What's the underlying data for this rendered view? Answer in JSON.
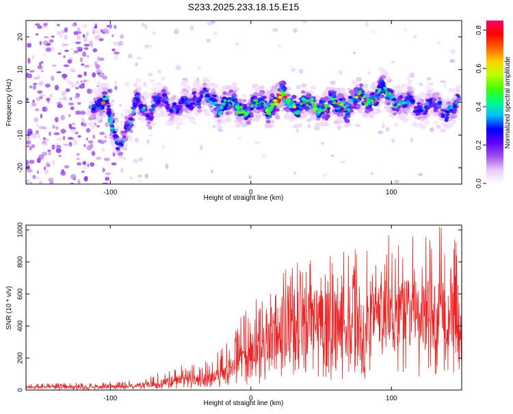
{
  "title": "S233.2025.233.18.15.E15",
  "chart_data": [
    {
      "type": "heatmap",
      "name": "spectrogram",
      "xlabel": "Height of straight line (km)",
      "ylabel": "Frequency (Hz)",
      "xlim": [
        -160,
        150
      ],
      "ylim": [
        -25,
        25
      ],
      "xticks": [
        -100,
        0,
        100
      ],
      "xtick_labels": [
        "-100",
        "0",
        "100"
      ],
      "yticks": [
        -20,
        -10,
        0,
        10,
        20
      ],
      "ytick_labels": [
        "-20",
        "-10",
        "0",
        "10",
        "20"
      ],
      "colorbar": {
        "label": "Normalized spectral amplitude",
        "range": [
          0,
          0.85
        ],
        "ticks": [
          0.0,
          0.2,
          0.4,
          0.6,
          0.8
        ],
        "tick_labels": [
          "0.0",
          "0.2",
          "0.4",
          "0.6",
          "0.8"
        ],
        "colors": [
          "#ffffff",
          "#e8c8f8",
          "#a050f0",
          "#6000ff",
          "#0000ff",
          "#00c0ff",
          "#00ff80",
          "#40ff00",
          "#c0ff00",
          "#ffd000",
          "#ff6000",
          "#ff0000",
          "#ff0060"
        ]
      },
      "ridge": [
        {
          "x": -114,
          "f": 0,
          "amp": 0.35
        },
        {
          "x": -103,
          "f": -1,
          "amp": 0.4
        },
        {
          "x": -95,
          "f": -12,
          "amp": 0.35
        },
        {
          "x": -86,
          "f": -8,
          "amp": 0.35
        },
        {
          "x": -80,
          "f": 2,
          "amp": 0.35
        },
        {
          "x": -72,
          "f": -4,
          "amp": 0.3
        },
        {
          "x": -62,
          "f": 2,
          "amp": 0.3
        },
        {
          "x": -52,
          "f": -3,
          "amp": 0.3
        },
        {
          "x": -40,
          "f": 2,
          "amp": 0.3
        },
        {
          "x": -28,
          "f": 0,
          "amp": 0.35
        },
        {
          "x": -12,
          "f": -1,
          "amp": 0.45
        },
        {
          "x": 0,
          "f": -2,
          "amp": 0.45
        },
        {
          "x": 10,
          "f": -1,
          "amp": 0.5
        },
        {
          "x": 22,
          "f": 1,
          "amp": 0.75
        },
        {
          "x": 35,
          "f": -1,
          "amp": 0.45
        },
        {
          "x": 50,
          "f": -1,
          "amp": 0.5
        },
        {
          "x": 65,
          "f": -1,
          "amp": 0.55
        },
        {
          "x": 80,
          "f": 1,
          "amp": 0.5
        },
        {
          "x": 95,
          "f": 3,
          "amp": 0.45
        },
        {
          "x": 110,
          "f": -1,
          "amp": 0.35
        },
        {
          "x": 125,
          "f": -1,
          "amp": 0.3
        },
        {
          "x": 140,
          "f": -2,
          "amp": 0.35
        },
        {
          "x": 148,
          "f": -1,
          "amp": 0.3
        }
      ]
    },
    {
      "type": "line",
      "name": "snr",
      "xlabel": "Height of straight line (km)",
      "ylabel": "SNR (10 * v/v)",
      "xlim": [
        -160,
        150
      ],
      "ylim": [
        0,
        1030
      ],
      "xticks": [
        -100,
        0,
        100
      ],
      "xtick_labels": [
        "-100",
        "0",
        "100"
      ],
      "yticks": [
        0,
        200,
        400,
        600,
        800,
        1000
      ],
      "ytick_labels": [
        "0",
        "200",
        "400",
        "600",
        "800",
        "1000"
      ],
      "line_color": "#ee2222",
      "envelope": {
        "x": [
          -160,
          -120,
          -90,
          -70,
          -55,
          -40,
          -30,
          -20,
          -10,
          0,
          10,
          20,
          30,
          40,
          60,
          80,
          100,
          120,
          140,
          150
        ],
        "median": [
          18,
          20,
          24,
          35,
          60,
          65,
          70,
          95,
          160,
          240,
          270,
          360,
          420,
          440,
          440,
          450,
          460,
          460,
          450,
          440
        ],
        "peak": [
          40,
          45,
          55,
          100,
          170,
          165,
          190,
          300,
          450,
          600,
          650,
          720,
          810,
          830,
          850,
          900,
          980,
          1030,
          1020,
          900
        ]
      }
    }
  ]
}
